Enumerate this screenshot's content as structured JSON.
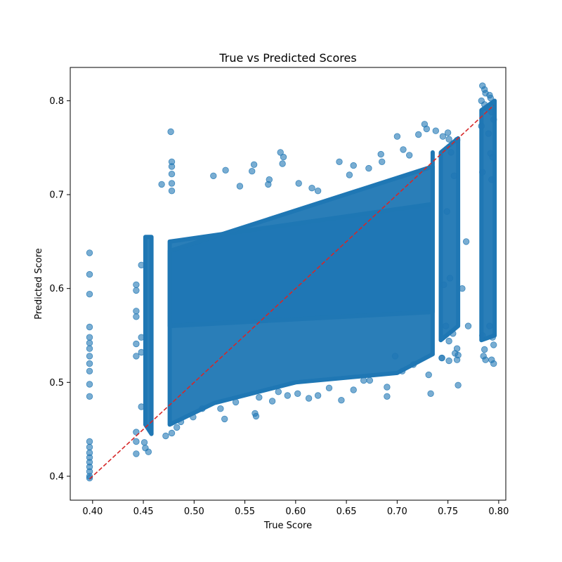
{
  "chart_data": {
    "type": "scatter",
    "title": "True vs Predicted Scores",
    "xlabel": "True Score",
    "ylabel": "Predicted Score",
    "xlim": [
      0.378,
      0.807
    ],
    "ylim": [
      0.3745,
      0.8355
    ],
    "x_ticks": [
      {
        "value": 0.4,
        "label": "0.40"
      },
      {
        "value": 0.45,
        "label": "0.45"
      },
      {
        "value": 0.5,
        "label": "0.50"
      },
      {
        "value": 0.55,
        "label": "0.55"
      },
      {
        "value": 0.6,
        "label": "0.60"
      },
      {
        "value": 0.65,
        "label": "0.65"
      },
      {
        "value": 0.7,
        "label": "0.70"
      },
      {
        "value": 0.75,
        "label": "0.75"
      },
      {
        "value": 0.8,
        "label": "0.80"
      }
    ],
    "y_ticks": [
      {
        "value": 0.4,
        "label": "0.4"
      },
      {
        "value": 0.5,
        "label": "0.5"
      },
      {
        "value": 0.6,
        "label": "0.6"
      },
      {
        "value": 0.7,
        "label": "0.7"
      },
      {
        "value": 0.8,
        "label": "0.8"
      }
    ],
    "grid": false,
    "point_color": "#1f77b4",
    "point_alpha": 0.6,
    "reference_line": {
      "style": "dashed",
      "color": "#d62728",
      "from": [
        0.397,
        0.397
      ],
      "to": [
        0.795,
        0.795
      ]
    },
    "series": [
      {
        "points": [
          [
            0.397,
            0.638
          ],
          [
            0.397,
            0.615
          ],
          [
            0.397,
            0.594
          ],
          [
            0.397,
            0.559
          ],
          [
            0.397,
            0.548
          ],
          [
            0.397,
            0.542
          ],
          [
            0.397,
            0.536
          ],
          [
            0.397,
            0.528
          ],
          [
            0.397,
            0.52
          ],
          [
            0.397,
            0.512
          ],
          [
            0.397,
            0.498
          ],
          [
            0.397,
            0.485
          ],
          [
            0.397,
            0.437
          ],
          [
            0.397,
            0.431
          ],
          [
            0.397,
            0.425
          ],
          [
            0.397,
            0.42
          ],
          [
            0.397,
            0.415
          ],
          [
            0.397,
            0.41
          ],
          [
            0.397,
            0.405
          ],
          [
            0.397,
            0.4
          ],
          [
            0.397,
            0.398
          ],
          [
            0.443,
            0.604
          ],
          [
            0.443,
            0.598
          ],
          [
            0.443,
            0.576
          ],
          [
            0.443,
            0.57
          ],
          [
            0.443,
            0.541
          ],
          [
            0.443,
            0.528
          ],
          [
            0.443,
            0.447
          ],
          [
            0.443,
            0.437
          ],
          [
            0.443,
            0.424
          ],
          [
            0.448,
            0.625
          ],
          [
            0.448,
            0.548
          ],
          [
            0.448,
            0.532
          ],
          [
            0.448,
            0.474
          ],
          [
            0.477,
            0.767
          ],
          [
            0.478,
            0.735
          ],
          [
            0.478,
            0.73
          ],
          [
            0.478,
            0.722
          ],
          [
            0.478,
            0.712
          ],
          [
            0.478,
            0.704
          ],
          [
            0.468,
            0.711
          ],
          [
            0.585,
            0.745
          ],
          [
            0.588,
            0.74
          ],
          [
            0.643,
            0.735
          ],
          [
            0.587,
            0.733
          ],
          [
            0.559,
            0.732
          ],
          [
            0.557,
            0.725
          ],
          [
            0.531,
            0.726
          ],
          [
            0.519,
            0.72
          ],
          [
            0.574,
            0.716
          ],
          [
            0.573,
            0.711
          ],
          [
            0.545,
            0.709
          ],
          [
            0.603,
            0.712
          ],
          [
            0.616,
            0.707
          ],
          [
            0.622,
            0.704
          ],
          [
            0.653,
            0.721
          ],
          [
            0.657,
            0.731
          ],
          [
            0.672,
            0.728
          ],
          [
            0.684,
            0.743
          ],
          [
            0.685,
            0.735
          ],
          [
            0.7,
            0.762
          ],
          [
            0.706,
            0.748
          ],
          [
            0.712,
            0.742
          ],
          [
            0.721,
            0.764
          ],
          [
            0.727,
            0.775
          ],
          [
            0.729,
            0.77
          ],
          [
            0.738,
            0.768
          ],
          [
            0.745,
            0.762
          ],
          [
            0.75,
            0.766
          ],
          [
            0.759,
            0.758
          ],
          [
            0.733,
            0.488
          ],
          [
            0.76,
            0.497
          ],
          [
            0.731,
            0.508
          ],
          [
            0.705,
            0.512
          ],
          [
            0.698,
            0.528
          ],
          [
            0.69,
            0.485
          ],
          [
            0.69,
            0.495
          ],
          [
            0.673,
            0.502
          ],
          [
            0.657,
            0.492
          ],
          [
            0.645,
            0.481
          ],
          [
            0.622,
            0.486
          ],
          [
            0.613,
            0.483
          ],
          [
            0.602,
            0.488
          ],
          [
            0.577,
            0.48
          ],
          [
            0.564,
            0.484
          ],
          [
            0.561,
            0.464
          ],
          [
            0.56,
            0.467
          ],
          [
            0.541,
            0.479
          ],
          [
            0.53,
            0.461
          ],
          [
            0.526,
            0.472
          ],
          [
            0.499,
            0.463
          ],
          [
            0.508,
            0.472
          ],
          [
            0.472,
            0.443
          ],
          [
            0.478,
            0.446
          ],
          [
            0.455,
            0.426
          ],
          [
            0.452,
            0.43
          ],
          [
            0.451,
            0.436
          ],
          [
            0.483,
            0.452
          ],
          [
            0.487,
            0.458
          ],
          [
            0.583,
            0.49
          ],
          [
            0.592,
            0.486
          ],
          [
            0.633,
            0.494
          ],
          [
            0.667,
            0.502
          ],
          [
            0.716,
            0.519
          ],
          [
            0.744,
            0.526
          ],
          [
            0.751,
            0.544
          ],
          [
            0.755,
            0.552
          ],
          [
            0.759,
            0.536
          ],
          [
            0.757,
            0.531
          ],
          [
            0.752,
            0.611
          ],
          [
            0.749,
            0.682
          ],
          [
            0.756,
            0.72
          ],
          [
            0.753,
            0.745
          ],
          [
            0.751,
            0.759
          ],
          [
            0.784,
            0.816
          ],
          [
            0.786,
            0.812
          ],
          [
            0.787,
            0.808
          ],
          [
            0.791,
            0.806
          ],
          [
            0.792,
            0.803
          ],
          [
            0.783,
            0.8
          ],
          [
            0.786,
            0.796
          ],
          [
            0.789,
            0.792
          ],
          [
            0.793,
            0.788
          ],
          [
            0.795,
            0.78
          ],
          [
            0.783,
            0.773
          ],
          [
            0.79,
            0.765
          ],
          [
            0.792,
            0.744
          ],
          [
            0.794,
            0.74
          ],
          [
            0.784,
            0.724
          ],
          [
            0.793,
            0.716
          ],
          [
            0.786,
            0.535
          ],
          [
            0.785,
            0.528
          ],
          [
            0.787,
            0.524
          ],
          [
            0.793,
            0.524
          ],
          [
            0.795,
            0.52
          ],
          [
            0.784,
            0.55
          ],
          [
            0.791,
            0.56
          ],
          [
            0.794,
            0.548
          ],
          [
            0.795,
            0.54
          ],
          [
            0.76,
            0.529
          ],
          [
            0.759,
            0.524
          ],
          [
            0.751,
            0.523
          ],
          [
            0.744,
            0.526
          ],
          [
            0.748,
            0.56
          ],
          [
            0.746,
            0.604
          ],
          [
            0.77,
            0.56
          ],
          [
            0.764,
            0.6
          ],
          [
            0.768,
            0.65
          ]
        ]
      }
    ]
  }
}
